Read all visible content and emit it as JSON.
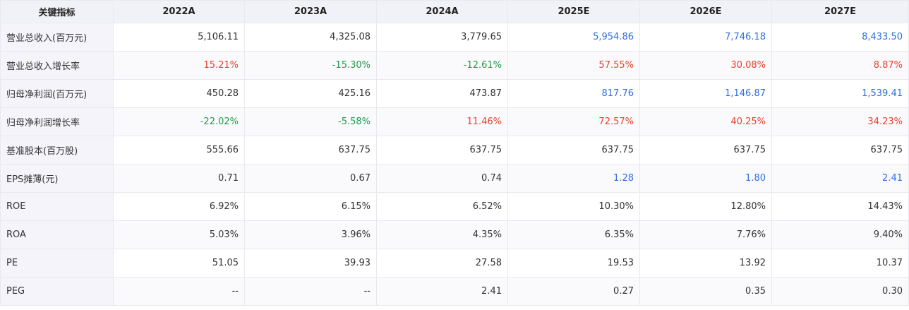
{
  "table": {
    "header_label": "关键指标",
    "columns": [
      "2022A",
      "2023A",
      "2024A",
      "2025E",
      "2026E",
      "2027E"
    ],
    "colors": {
      "normal": "#333333",
      "forecast": "#2f6fdc",
      "positive": "#e9412b",
      "negative": "#1f9a48"
    },
    "rows": [
      {
        "label": "营业总收入(百万元)",
        "cells": [
          {
            "v": "5,106.11",
            "tone": "normal"
          },
          {
            "v": "4,325.08",
            "tone": "normal"
          },
          {
            "v": "3,779.65",
            "tone": "normal"
          },
          {
            "v": "5,954.86",
            "tone": "forecast"
          },
          {
            "v": "7,746.18",
            "tone": "forecast"
          },
          {
            "v": "8,433.50",
            "tone": "forecast"
          }
        ]
      },
      {
        "label": "营业总收入增长率",
        "cells": [
          {
            "v": "15.21%",
            "tone": "up"
          },
          {
            "v": "-15.30%",
            "tone": "down"
          },
          {
            "v": "-12.61%",
            "tone": "down"
          },
          {
            "v": "57.55%",
            "tone": "up"
          },
          {
            "v": "30.08%",
            "tone": "up"
          },
          {
            "v": "8.87%",
            "tone": "up"
          }
        ]
      },
      {
        "label": "归母净利润(百万元)",
        "cells": [
          {
            "v": "450.28",
            "tone": "normal"
          },
          {
            "v": "425.16",
            "tone": "normal"
          },
          {
            "v": "473.87",
            "tone": "normal"
          },
          {
            "v": "817.76",
            "tone": "forecast"
          },
          {
            "v": "1,146.87",
            "tone": "forecast"
          },
          {
            "v": "1,539.41",
            "tone": "forecast"
          }
        ]
      },
      {
        "label": "归母净利润增长率",
        "cells": [
          {
            "v": "-22.02%",
            "tone": "down"
          },
          {
            "v": "-5.58%",
            "tone": "down"
          },
          {
            "v": "11.46%",
            "tone": "up"
          },
          {
            "v": "72.57%",
            "tone": "up"
          },
          {
            "v": "40.25%",
            "tone": "up"
          },
          {
            "v": "34.23%",
            "tone": "up"
          }
        ]
      },
      {
        "label": "基准股本(百万股)",
        "cells": [
          {
            "v": "555.66",
            "tone": "normal"
          },
          {
            "v": "637.75",
            "tone": "normal"
          },
          {
            "v": "637.75",
            "tone": "normal"
          },
          {
            "v": "637.75",
            "tone": "normal"
          },
          {
            "v": "637.75",
            "tone": "normal"
          },
          {
            "v": "637.75",
            "tone": "normal"
          }
        ]
      },
      {
        "label": "EPS摊薄(元)",
        "cells": [
          {
            "v": "0.71",
            "tone": "normal"
          },
          {
            "v": "0.67",
            "tone": "normal"
          },
          {
            "v": "0.74",
            "tone": "normal"
          },
          {
            "v": "1.28",
            "tone": "forecast"
          },
          {
            "v": "1.80",
            "tone": "forecast"
          },
          {
            "v": "2.41",
            "tone": "forecast"
          }
        ]
      },
      {
        "label": "ROE",
        "cells": [
          {
            "v": "6.92%",
            "tone": "normal"
          },
          {
            "v": "6.15%",
            "tone": "normal"
          },
          {
            "v": "6.52%",
            "tone": "normal"
          },
          {
            "v": "10.30%",
            "tone": "normal"
          },
          {
            "v": "12.80%",
            "tone": "normal"
          },
          {
            "v": "14.43%",
            "tone": "normal"
          }
        ]
      },
      {
        "label": "ROA",
        "cells": [
          {
            "v": "5.03%",
            "tone": "normal"
          },
          {
            "v": "3.96%",
            "tone": "normal"
          },
          {
            "v": "4.35%",
            "tone": "normal"
          },
          {
            "v": "6.35%",
            "tone": "normal"
          },
          {
            "v": "7.76%",
            "tone": "normal"
          },
          {
            "v": "9.40%",
            "tone": "normal"
          }
        ]
      },
      {
        "label": "PE",
        "cells": [
          {
            "v": "51.05",
            "tone": "normal"
          },
          {
            "v": "39.93",
            "tone": "normal"
          },
          {
            "v": "27.58",
            "tone": "normal"
          },
          {
            "v": "19.53",
            "tone": "normal"
          },
          {
            "v": "13.92",
            "tone": "normal"
          },
          {
            "v": "10.37",
            "tone": "normal"
          }
        ]
      },
      {
        "label": "PEG",
        "cells": [
          {
            "v": "--",
            "tone": "normal"
          },
          {
            "v": "--",
            "tone": "normal"
          },
          {
            "v": "2.41",
            "tone": "normal"
          },
          {
            "v": "0.27",
            "tone": "normal"
          },
          {
            "v": "0.35",
            "tone": "normal"
          },
          {
            "v": "0.30",
            "tone": "normal"
          }
        ]
      }
    ]
  }
}
